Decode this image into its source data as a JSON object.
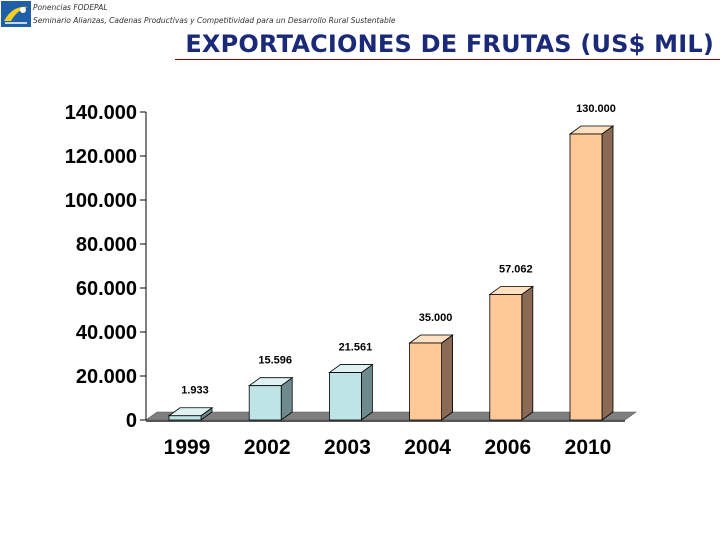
{
  "header": {
    "line1": "Ponencias FODEPAL",
    "line2": "Seminario Alianzas, Cadenas Productivas y Competitividad para un Desarrollo Rural Sustentable"
  },
  "slide_title": "EXPORTACIONES DE FRUTAS (US$ MIL)",
  "logo_icon": "fodepal-logo-icon",
  "colors": {
    "title": "#1b2a78",
    "bar_blue_front": "#bfe4e6",
    "bar_blue_side": "#6f8a8c",
    "bar_orange_front": "#ffc896",
    "bar_orange_side": "#8a6a55",
    "floor": "#7f7f7f"
  },
  "chart_data": {
    "type": "bar",
    "title": "",
    "xlabel": "",
    "ylabel": "",
    "categories": [
      "1999",
      "2002",
      "2003",
      "2004",
      "2006",
      "2010"
    ],
    "values": [
      1933,
      15596,
      21561,
      35000,
      57062,
      130000
    ],
    "value_labels": [
      "1.933",
      "15.596",
      "21.561",
      "35.000",
      "57.062",
      "130.000"
    ],
    "bar_colors": [
      "blue",
      "blue",
      "blue",
      "orange",
      "orange",
      "orange"
    ],
    "ylim": [
      0,
      140000
    ],
    "yticks": [
      0,
      20000,
      40000,
      60000,
      80000,
      100000,
      120000,
      140000
    ],
    "ytick_labels": [
      "0",
      "20.000",
      "40.000",
      "60.000",
      "80.000",
      "100.000",
      "120.000",
      "140.000"
    ],
    "grid": false,
    "style": "3d-columns"
  }
}
